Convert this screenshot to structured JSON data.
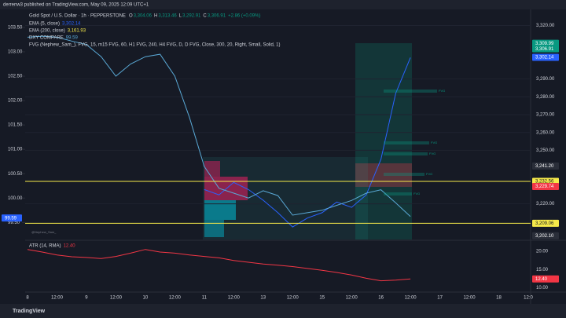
{
  "header": "derrenw3 published on TradingView.com, May 09, 2025 12:09 UTC+1",
  "footer": "TradingView",
  "watermark": "@Nephew_Sam_",
  "chart_data": [
    {
      "type": "line",
      "title": "Gold Spot / U.S. Dollar · 1h · PEPPERSTONE",
      "ohlc": [
        "O",
        "3,304.06",
        "H",
        "3,313.46",
        "L",
        "3,292.91",
        "C",
        "3,306.91",
        "+2.86 (+0.09%)"
      ],
      "categories": [
        "8",
        null,
        "12:00",
        null,
        "9",
        null,
        "12:00",
        null,
        "10",
        null,
        "12:00",
        null,
        "11",
        null,
        "12:00",
        null,
        "13",
        null,
        "12:00",
        null,
        "15",
        null,
        "12:00",
        null,
        "16",
        null,
        "12:00",
        null,
        "17",
        null,
        "12:00",
        null,
        "18",
        null,
        "12:0"
      ],
      "series": [
        {
          "name": "EMA (5, close)",
          "color": "#2962ff",
          "values": [
            null,
            null,
            null,
            null,
            null,
            null,
            null,
            null,
            null,
            null,
            null,
            null,
            3228,
            3225,
            3232,
            3228,
            3222,
            3215,
            3207,
            3212,
            3215,
            3221,
            3218,
            3225,
            3245,
            3282,
            3302,
            null,
            null,
            null,
            null,
            null,
            null,
            null,
            null
          ]
        },
        {
          "name": "DXY COMPARE",
          "color": "#5aa9d6",
          "axis": "y2",
          "values": [
            103.3,
            103.32,
            103.3,
            103.22,
            103.15,
            102.9,
            102.5,
            102.75,
            102.9,
            102.95,
            102.5,
            101.65,
            100.65,
            100.2,
            100.1,
            100.0,
            100.15,
            100.05,
            99.65,
            99.7,
            99.75,
            99.85,
            99.95,
            100.1,
            100.17,
            99.9,
            99.62,
            null,
            null,
            null,
            null,
            null,
            null,
            null,
            null
          ]
        }
      ],
      "indicators": [
        "EMA (200, close)",
        "3,161.93",
        "FVG (Nephew_Sam_), FVG, 15, m15 FVG, 60, H1 FVG, 240, H4 FVG, D, D FVG, Close, 300, 20, Right, Small, Solid, 1)"
      ],
      "ylim": [
        3200,
        3329
      ],
      "yticks": [
        {
          "value": 3220,
          "label": "3,220.00"
        },
        {
          "value": 3250,
          "label": "3,250.00"
        },
        {
          "value": 3260,
          "label": "3,260.00"
        },
        {
          "value": 3270,
          "label": "3,270.00"
        },
        {
          "value": 3280,
          "label": "3,280.00"
        },
        {
          "value": 3290,
          "label": "3,290.00"
        },
        {
          "value": 3320,
          "label": "3,320.00"
        }
      ],
      "y2lim": [
        99.15,
        103.87
      ],
      "y2ticks": [
        {
          "value": 99.5,
          "label": "99.50"
        },
        {
          "value": 100,
          "label": "100.00"
        },
        {
          "value": 100.5,
          "label": "100.50"
        },
        {
          "value": 101,
          "label": "101.00"
        },
        {
          "value": 101.5,
          "label": "101.50"
        },
        {
          "value": 102,
          "label": "102.00"
        },
        {
          "value": 102.5,
          "label": "102.50"
        },
        {
          "value": 103,
          "label": "103.00"
        },
        {
          "value": 103.5,
          "label": "103.50"
        }
      ],
      "grid": true,
      "price_tags": [
        {
          "value": 3309.99,
          "label": "3,309.99",
          "color": "#089981"
        },
        {
          "value": 3306.91,
          "label": "3,306.91",
          "color": "#089981"
        },
        {
          "value": 3302.14,
          "label": "3,302.14",
          "color": "#2962ff"
        },
        {
          "value": 3241.2,
          "label": "3,241.20",
          "color": "#2a2e39"
        },
        {
          "value": 3232.56,
          "label": "3,232.56",
          "color": "#f5e94a"
        },
        {
          "value": 3229.74,
          "label": "3,229.74",
          "color": "#f23645"
        },
        {
          "value": 3209.06,
          "label": "3,209.06",
          "color": "#f5e94a"
        },
        {
          "value": 3202.1,
          "label": "3,202.10",
          "color": "#2a2e39"
        }
      ],
      "y2_tags": [
        {
          "value": 99.59,
          "label": "99.59",
          "color": "#2962ff"
        }
      ],
      "fvg_labels": [
        "FVG",
        "FVG",
        "FVG",
        "FVG",
        "FVG"
      ]
    },
    {
      "type": "line",
      "series": [
        {
          "name": "ATR (14, RMA)",
          "color": "#f23645",
          "values": [
            20.5,
            19.8,
            19.0,
            18.5,
            18.3,
            18.0,
            18.6,
            19.5,
            20.5,
            19.8,
            19.5,
            19.0,
            18.6,
            18.2,
            17.5,
            17.0,
            16.5,
            16.2,
            15.8,
            15.3,
            14.8,
            14.2,
            13.5,
            12.6,
            11.9,
            12.1,
            12.4,
            null,
            null,
            null,
            null,
            null,
            null,
            null,
            null
          ]
        }
      ],
      "ylim": [
        8.8,
        22.6
      ],
      "yticks": [
        {
          "value": 10,
          "label": "10.00"
        },
        {
          "value": 15,
          "label": "15.00"
        },
        {
          "value": 20,
          "label": "20.00"
        }
      ],
      "price_tags": [
        {
          "value": 12.4,
          "label": "12.40",
          "color": "#f23645"
        }
      ]
    }
  ]
}
